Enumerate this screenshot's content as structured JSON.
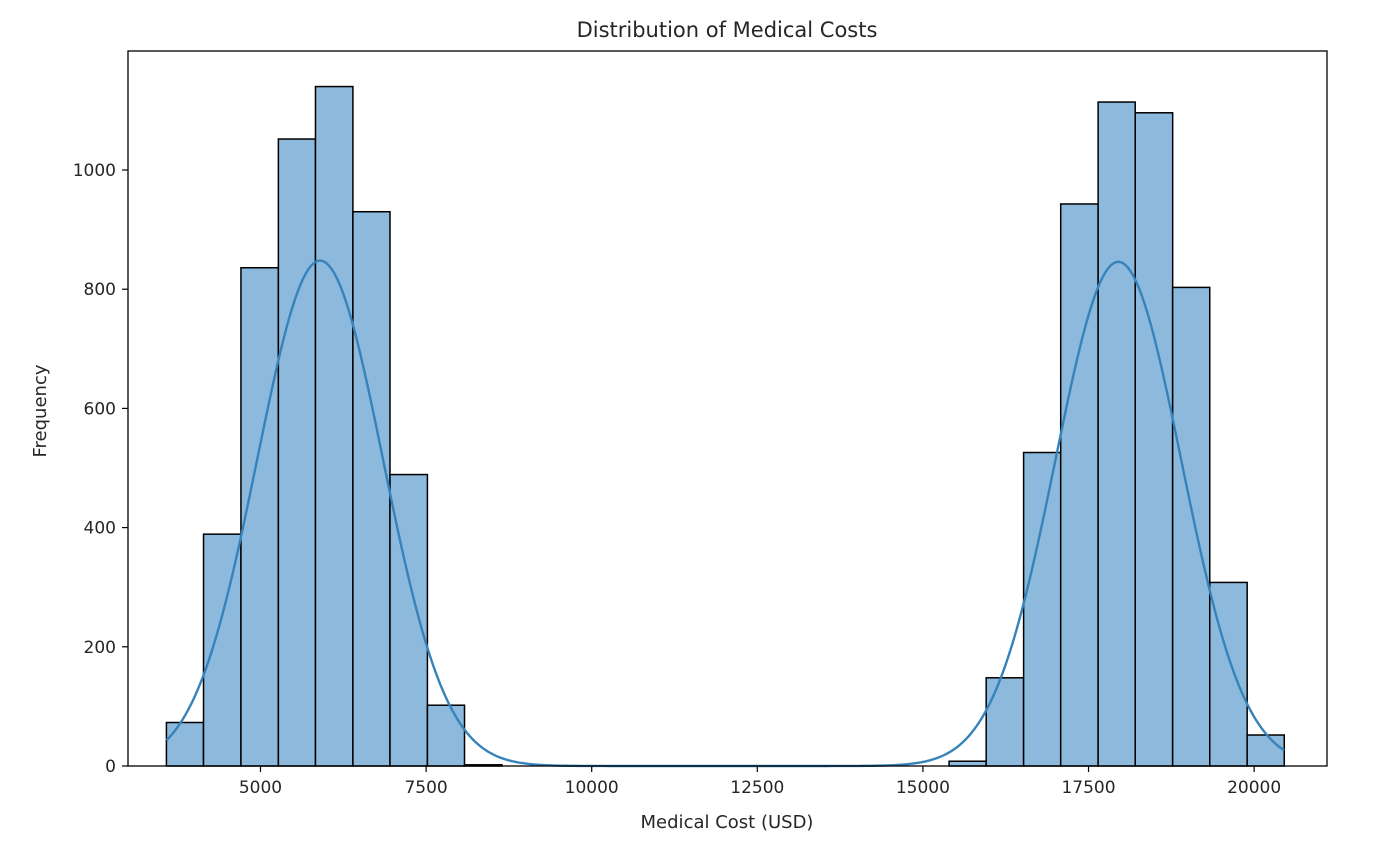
{
  "chart_data": {
    "type": "bar",
    "title": "Distribution of Medical Costs",
    "xlabel": "Medical Cost (USD)",
    "ylabel": "Frequency",
    "xlim": [
      3000,
      21100
    ],
    "ylim": [
      0,
      1200
    ],
    "xticks": [
      5000,
      7500,
      10000,
      12500,
      15000,
      17500,
      20000
    ],
    "yticks": [
      0,
      200,
      400,
      600,
      800,
      1000
    ],
    "bar_color": "#8db9dc",
    "edge_color": "#000000",
    "kde_color": "#3683bb",
    "grid": false,
    "bins": [
      {
        "x0": 3580,
        "x1": 4140,
        "count": 73
      },
      {
        "x0": 4140,
        "x1": 4705,
        "count": 389
      },
      {
        "x0": 4705,
        "x1": 5270,
        "count": 836
      },
      {
        "x0": 5270,
        "x1": 5830,
        "count": 1052
      },
      {
        "x0": 5830,
        "x1": 6395,
        "count": 1140
      },
      {
        "x0": 6395,
        "x1": 6955,
        "count": 930
      },
      {
        "x0": 6955,
        "x1": 7520,
        "count": 489
      },
      {
        "x0": 7520,
        "x1": 8080,
        "count": 102
      },
      {
        "x0": 8080,
        "x1": 8645,
        "count": 2
      },
      {
        "x0": 15395,
        "x1": 15955,
        "count": 8
      },
      {
        "x0": 15955,
        "x1": 16520,
        "count": 148
      },
      {
        "x0": 16520,
        "x1": 17080,
        "count": 526
      },
      {
        "x0": 17080,
        "x1": 17645,
        "count": 943
      },
      {
        "x0": 17645,
        "x1": 18205,
        "count": 1114
      },
      {
        "x0": 18205,
        "x1": 18770,
        "count": 1096
      },
      {
        "x0": 18770,
        "x1": 19330,
        "count": 803
      },
      {
        "x0": 19330,
        "x1": 19895,
        "count": 308
      },
      {
        "x0": 19895,
        "x1": 20455,
        "count": 52
      }
    ],
    "kde": {
      "x_range": [
        3580,
        20455
      ],
      "components": [
        {
          "mean": 5900,
          "sd": 950,
          "peak": 848
        },
        {
          "mean": 17950,
          "sd": 950,
          "peak": 846
        }
      ]
    }
  }
}
